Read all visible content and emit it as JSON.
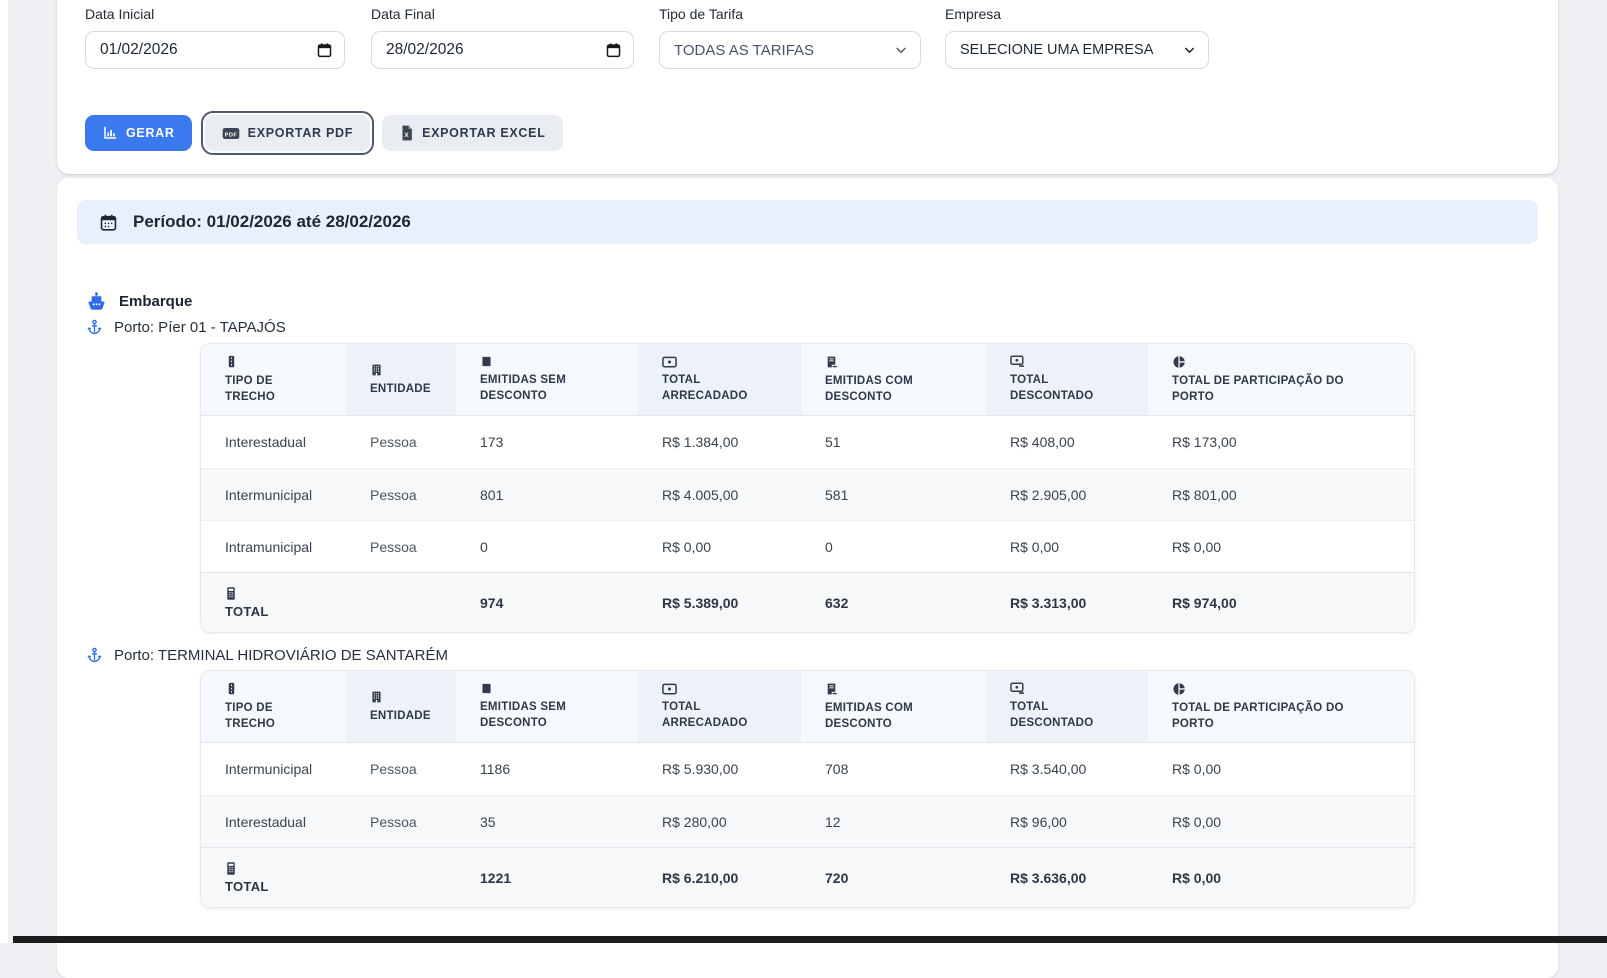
{
  "filters": {
    "data_inicial": {
      "label": "Data Inicial",
      "value": "01/02/2026"
    },
    "data_final": {
      "label": "Data Final",
      "value": "28/02/2026"
    },
    "tipo_tarifa": {
      "label": "Tipo de Tarifa",
      "value": "TODAS AS TARIFAS"
    },
    "empresa": {
      "label": "Empresa",
      "value": "SELECIONE UMA EMPRESA"
    }
  },
  "actions": {
    "gerar": "GERAR",
    "exportar_pdf": "EXPORTAR PDF",
    "exportar_excel": "EXPORTAR EXCEL"
  },
  "period_banner": {
    "text": "Período: 01/02/2026 até 28/02/2026"
  },
  "icons": {
    "date_inputs": "calendar-icon",
    "selects": "chevron-down-icon",
    "gerar_button": "bar-chart-icon",
    "pdf_button": "pdf-file-icon",
    "excel_button": "excel-file-icon",
    "banner": "calendar-icon",
    "section": "ship-icon",
    "ports": "anchor-icon"
  },
  "colors": {
    "primary_blue": "#3b79ee",
    "icon_blue": "#2e6be6",
    "banner_bg": "#e9f0fc",
    "header_bg_light": "#f5f8fc",
    "header_bg_dark": "#edf1f8",
    "page_bg": "#eef0f3"
  },
  "report": {
    "section_label": "Embarque",
    "total_label": "TOTAL",
    "total_icon": "calculator-icon",
    "columns": [
      {
        "icon": "route-icon",
        "label": "TIPO DE TRECHO"
      },
      {
        "icon": "building-icon",
        "label": "ENTIDADE"
      },
      {
        "icon": "ticket-icon",
        "label": "EMITIDAS SEM DESCONTO"
      },
      {
        "icon": "banknote-icon",
        "label": "TOTAL ARRECADADO"
      },
      {
        "icon": "receipt-minus-icon",
        "label": "EMITIDAS COM DESCONTO"
      },
      {
        "icon": "banknote-minus-icon",
        "label": "TOTAL DESCONTADO"
      },
      {
        "icon": "pie-chart-icon",
        "label": "TOTAL DE PARTICIPAÇÃO DO PORTO"
      }
    ],
    "ports": [
      {
        "label": "Porto: Píer 01 - TAPAJÓS",
        "rows": [
          [
            "Interestadual",
            "Pessoa",
            "173",
            "R$ 1.384,00",
            "51",
            "R$ 408,00",
            "R$ 173,00"
          ],
          [
            "Intermunicipal",
            "Pessoa",
            "801",
            "R$ 4.005,00",
            "581",
            "R$ 2.905,00",
            "R$ 801,00"
          ],
          [
            "Intramunicipal",
            "Pessoa",
            "0",
            "R$ 0,00",
            "0",
            "R$ 0,00",
            "R$ 0,00"
          ]
        ],
        "total": [
          "974",
          "R$ 5.389,00",
          "632",
          "R$ 3.313,00",
          "R$ 974,00"
        ]
      },
      {
        "label": "Porto: TERMINAL HIDROVIÁRIO DE SANTARÉM",
        "rows": [
          [
            "Intermunicipal",
            "Pessoa",
            "1186",
            "R$ 5.930,00",
            "708",
            "R$ 3.540,00",
            "R$ 0,00"
          ],
          [
            "Interestadual",
            "Pessoa",
            "35",
            "R$ 280,00",
            "12",
            "R$ 96,00",
            "R$ 0,00"
          ]
        ],
        "total": [
          "1221",
          "R$ 6.210,00",
          "720",
          "R$ 3.636,00",
          "R$ 0,00"
        ]
      }
    ]
  }
}
